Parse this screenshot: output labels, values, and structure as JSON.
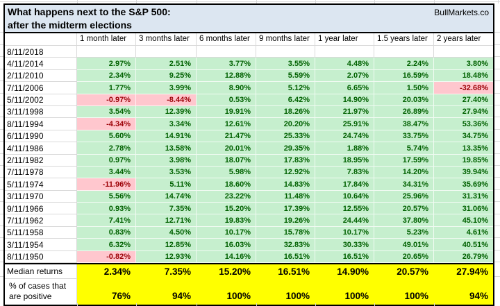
{
  "title": {
    "line1": "What happens next to the S&P 500:",
    "line2": "after the midterm elections",
    "brand": "BullMarkets.co"
  },
  "columns": [
    "1 month later",
    "3 months later",
    "6 months later",
    "9 months later",
    "1 year later",
    "1.5 years later",
    "2 years later"
  ],
  "rows": [
    {
      "date": "8/11/2018",
      "values": [
        "",
        "",
        "",
        "",
        "",
        "",
        ""
      ]
    },
    {
      "date": "4/11/2014",
      "values": [
        "2.97%",
        "2.51%",
        "3.77%",
        "3.55%",
        "4.48%",
        "2.24%",
        "3.80%"
      ]
    },
    {
      "date": "2/11/2010",
      "values": [
        "2.34%",
        "9.25%",
        "12.88%",
        "5.59%",
        "2.07%",
        "16.59%",
        "18.48%"
      ]
    },
    {
      "date": "7/11/2006",
      "values": [
        "1.77%",
        "3.99%",
        "8.90%",
        "5.12%",
        "6.65%",
        "1.50%",
        "-32.68%"
      ]
    },
    {
      "date": "5/11/2002",
      "values": [
        "-0.97%",
        "-8.44%",
        "0.53%",
        "6.42%",
        "14.90%",
        "20.03%",
        "27.40%"
      ]
    },
    {
      "date": "3/11/1998",
      "values": [
        "3.54%",
        "12.39%",
        "19.91%",
        "18.26%",
        "21.97%",
        "26.89%",
        "27.94%"
      ]
    },
    {
      "date": "8/11/1994",
      "values": [
        "-4.34%",
        "3.34%",
        "12.61%",
        "20.20%",
        "25.91%",
        "38.47%",
        "53.36%"
      ]
    },
    {
      "date": "6/11/1990",
      "values": [
        "5.60%",
        "14.91%",
        "21.47%",
        "25.33%",
        "24.74%",
        "33.75%",
        "34.75%"
      ]
    },
    {
      "date": "4/11/1986",
      "values": [
        "2.78%",
        "13.58%",
        "20.01%",
        "29.35%",
        "1.88%",
        "5.74%",
        "13.35%"
      ]
    },
    {
      "date": "2/11/1982",
      "values": [
        "0.97%",
        "3.98%",
        "18.07%",
        "17.83%",
        "18.95%",
        "17.59%",
        "19.85%"
      ]
    },
    {
      "date": "7/11/1978",
      "values": [
        "3.44%",
        "3.53%",
        "5.98%",
        "12.92%",
        "7.83%",
        "14.20%",
        "39.94%"
      ]
    },
    {
      "date": "5/11/1974",
      "values": [
        "-11.96%",
        "5.11%",
        "18.60%",
        "14.83%",
        "17.84%",
        "34.31%",
        "35.69%"
      ]
    },
    {
      "date": "3/11/1970",
      "values": [
        "5.56%",
        "14.74%",
        "23.22%",
        "11.48%",
        "10.64%",
        "25.96%",
        "31.31%"
      ]
    },
    {
      "date": "9/11/1966",
      "values": [
        "0.93%",
        "7.35%",
        "15.20%",
        "17.39%",
        "12.55%",
        "20.57%",
        "31.06%"
      ]
    },
    {
      "date": "7/11/1962",
      "values": [
        "7.41%",
        "12.71%",
        "19.83%",
        "19.26%",
        "24.44%",
        "37.80%",
        "45.10%"
      ]
    },
    {
      "date": "5/11/1958",
      "values": [
        "0.83%",
        "4.50%",
        "10.17%",
        "15.78%",
        "10.17%",
        "5.23%",
        "4.61%"
      ]
    },
    {
      "date": "3/11/1954",
      "values": [
        "6.32%",
        "12.85%",
        "16.03%",
        "32.83%",
        "30.33%",
        "49.01%",
        "40.51%"
      ]
    },
    {
      "date": "8/11/1950",
      "values": [
        "-0.82%",
        "12.93%",
        "14.16%",
        "16.51%",
        "16.51%",
        "20.65%",
        "26.79%"
      ]
    }
  ],
  "summary": {
    "median": {
      "label": "Median returns",
      "values": [
        "2.34%",
        "7.35%",
        "15.20%",
        "16.51%",
        "14.90%",
        "20.57%",
        "27.94%"
      ]
    },
    "positive": {
      "label_line1": "% of cases that",
      "label_line2": "are positive",
      "values": [
        "76%",
        "94%",
        "100%",
        "100%",
        "100%",
        "100%",
        "94%"
      ]
    }
  },
  "colors": {
    "title_bg": "#DCE6F1",
    "positive_bg": "#C6EFCE",
    "positive_text": "#006100",
    "negative_bg": "#FFC7CE",
    "negative_text": "#9C0006",
    "highlight_bg": "#FFFF00",
    "gridline": "#D9D9D9",
    "border": "#000000"
  }
}
